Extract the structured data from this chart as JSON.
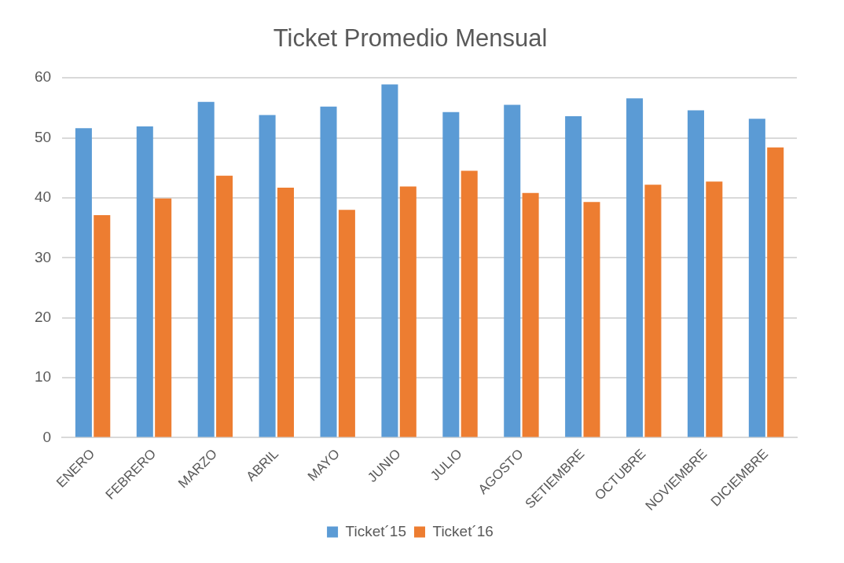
{
  "chart_data": {
    "type": "bar",
    "title": "Ticket Promedio Mensual",
    "categories": [
      "ENERO",
      "FEBRERO",
      "MARZO",
      "ABRIL",
      "MAYO",
      "JUNIO",
      "JULIO",
      "AGOSTO",
      "SETIEMBRE",
      "OCTUBRE",
      "NOVIEMBRE",
      "DICIEMBRE"
    ],
    "series": [
      {
        "name": "Ticket´15",
        "color": "#5b9bd5",
        "values": [
          51.6,
          51.9,
          56.0,
          53.8,
          55.2,
          58.9,
          54.3,
          55.5,
          53.6,
          56.6,
          54.6,
          53.2
        ]
      },
      {
        "name": "Ticket´16",
        "color": "#ed7d31",
        "values": [
          37.1,
          39.9,
          43.7,
          41.7,
          38.0,
          41.9,
          44.5,
          40.8,
          39.3,
          42.2,
          42.7,
          48.4
        ]
      }
    ],
    "ylim": [
      0,
      60
    ],
    "yticks": [
      0,
      10,
      20,
      30,
      40,
      50,
      60
    ],
    "grid": "y",
    "legend": "bottom"
  }
}
